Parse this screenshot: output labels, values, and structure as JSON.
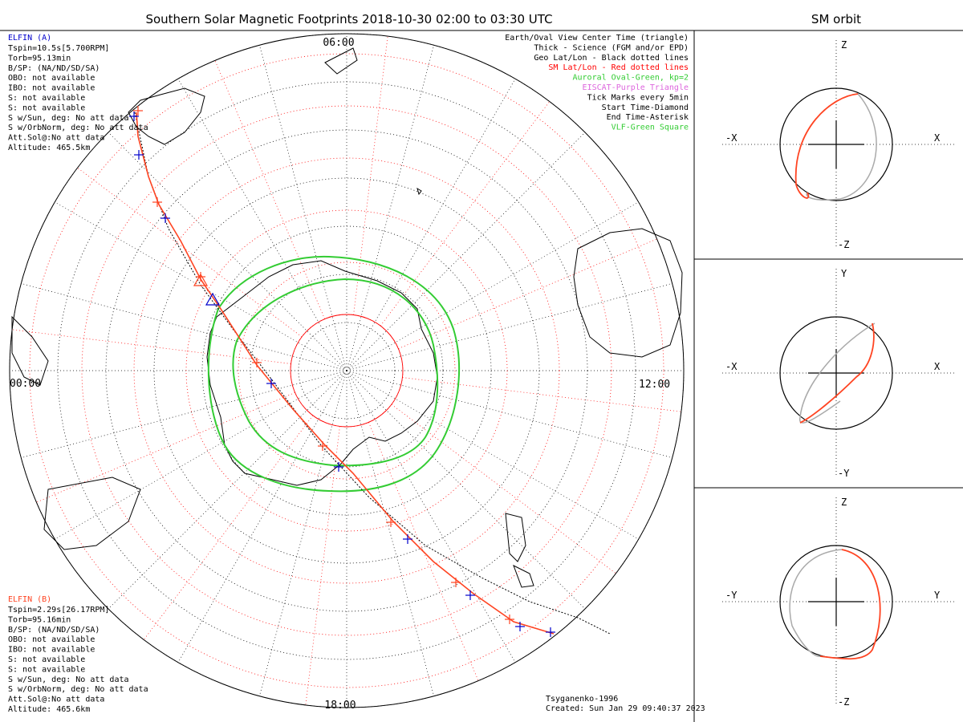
{
  "title": "Southern Solar Magnetic Footprints 2018-10-30 02:00 to 03:30 UTC",
  "orbit_title": "SM orbit",
  "clock_labels": {
    "top": "06:00",
    "left": "00:00",
    "right": "12:00",
    "bottom": "18:00"
  },
  "legend": [
    {
      "text": "Earth/Oval View Center Time (triangle)",
      "color": "#000000"
    },
    {
      "text": "Thick - Science (FGM and/or EPD)",
      "color": "#000000"
    },
    {
      "text": "Geo Lat/Lon - Black dotted lines",
      "color": "#000000"
    },
    {
      "text": "SM Lat/Lon - Red dotted lines",
      "color": "#ff0000"
    },
    {
      "text": "Auroral Oval-Green, kp=2",
      "color": "#33cc33"
    },
    {
      "text": "EISCAT-Purple Triangle",
      "color": "#dd66dd"
    },
    {
      "text": "Tick Marks every 5min",
      "color": "#000000"
    },
    {
      "text": "Start Time-Diamond",
      "color": "#000000"
    },
    {
      "text": "End Time-Asterisk",
      "color": "#000000"
    },
    {
      "text": "VLF-Green Square",
      "color": "#33cc33"
    }
  ],
  "elfin_a": {
    "name": "ELFIN (A)",
    "color": "#0000cc",
    "lines": [
      "Tspin=10.5s[5.700RPM]",
      "Torb=95.13min",
      "B/SP: (NA/ND/SD/SA)",
      "OBO: not available",
      "IBO: not available",
      "S: not available",
      "S: not available",
      "S w/Sun, deg: No att data",
      "S w/OrbNorm, deg: No att data",
      "Att.Sol@:No att data",
      "Altitude: 465.5km"
    ]
  },
  "elfin_b": {
    "name": "ELFIN (B)",
    "color": "#ff4422",
    "lines": [
      "Tspin=2.29s[26.17RPM]",
      "Torb=95.16min",
      "B/SP: (NA/ND/SD/SA)",
      "OBO: not available",
      "IBO: not available",
      "S: not available",
      "S: not available",
      "S w/Sun, deg: No att data",
      "S w/OrbNorm, deg: No att data",
      "Att.Sol@:No att data",
      "Altitude: 465.6km"
    ]
  },
  "footer": {
    "model": "Tsyganenko-1996",
    "created": "Created: Sun Jan 29 09:40:37 2023"
  },
  "orbit_panels": [
    {
      "top": "Z",
      "bottom": "-Z",
      "left": "-X",
      "right": "X"
    },
    {
      "top": "Y",
      "bottom": "-Y",
      "left": "-X",
      "right": "X"
    },
    {
      "top": "Z",
      "bottom": "-Z",
      "left": "-Y",
      "right": "Y"
    }
  ],
  "colors": {
    "elfin_a": "#0000cc",
    "elfin_b": "#ff4422",
    "sm_grid": "#ff0000",
    "geo_grid": "#000000",
    "oval": "#33cc33",
    "orbit_gray": "#aaaaaa"
  }
}
